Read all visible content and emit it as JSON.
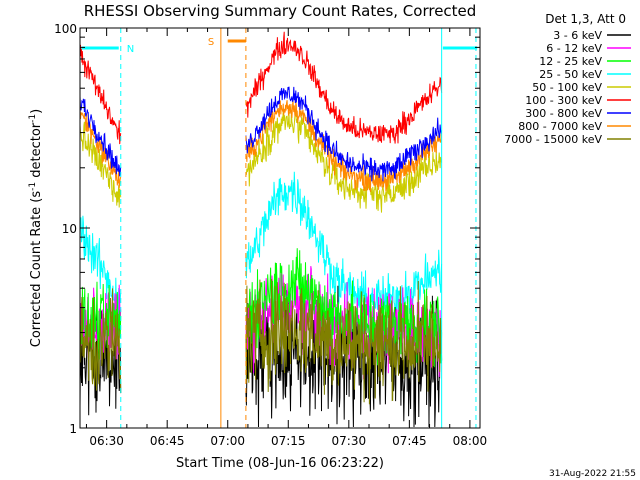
{
  "chart_data": {
    "type": "line",
    "title": "RHESSI Observing Summary Count Rates, Corrected",
    "xlabel": "Start Time (08-Jun-16 06:23:22)",
    "ylabel_main": "Corrected Count Rate (s",
    "ylabel_sup1": "-1",
    "ylabel_mid": " detector",
    "ylabel_sup2": "-1",
    "ylabel_end": ")",
    "y_scale": "log",
    "ylim": [
      1,
      100
    ],
    "xlim_minutes": [
      23.4,
      122.5
    ],
    "x_ticks": [
      {
        "m": 30,
        "label": "06:30"
      },
      {
        "m": 45,
        "label": "06:45"
      },
      {
        "m": 60,
        "label": "07:00"
      },
      {
        "m": 75,
        "label": "07:15"
      },
      {
        "m": 90,
        "label": "07:30"
      },
      {
        "m": 105,
        "label": "07:45"
      },
      {
        "m": 120,
        "label": "08:00"
      }
    ],
    "y_ticks": [
      {
        "v": 1,
        "label": "1"
      },
      {
        "v": 10,
        "label": "10"
      },
      {
        "v": 100,
        "label": "100"
      }
    ],
    "legend_title": "Det 1,3, Att 0",
    "legend_placement": "right",
    "series": [
      {
        "name": "3 - 6 keV",
        "color": "#000000"
      },
      {
        "name": "6 - 12 keV",
        "color": "#ff00ff"
      },
      {
        "name": "12 - 25 keV",
        "color": "#00ff00"
      },
      {
        "name": "25 - 50 keV",
        "color": "#00ffff"
      },
      {
        "name": "50 - 100 keV",
        "color": "#cccc00"
      },
      {
        "name": "100 - 300 keV",
        "color": "#ff0000"
      },
      {
        "name": "300 - 800 keV",
        "color": "#0000ff"
      },
      {
        "name": "800 - 7000 keV",
        "color": "#ff8800"
      },
      {
        "name": "7000 - 15000 keV",
        "color": "#808000"
      }
    ],
    "observing_segments": [
      {
        "from": 23.4,
        "to": 33.5
      },
      {
        "from": 64.5,
        "to": 113.0
      }
    ],
    "night_label": "N",
    "night_bars": [
      [
        23.8,
        33.0
      ],
      [
        113.3,
        121.8
      ]
    ],
    "night_lines": [
      33.5,
      121.5
    ],
    "night_solid_line": 113.0,
    "saa_label": "S",
    "saa_bar": [
      60.0,
      64.5
    ],
    "saa_solid_line": 58.3,
    "saa_dashed_line": 64.5,
    "timestamp": "31-Aug-2022 21:55"
  }
}
